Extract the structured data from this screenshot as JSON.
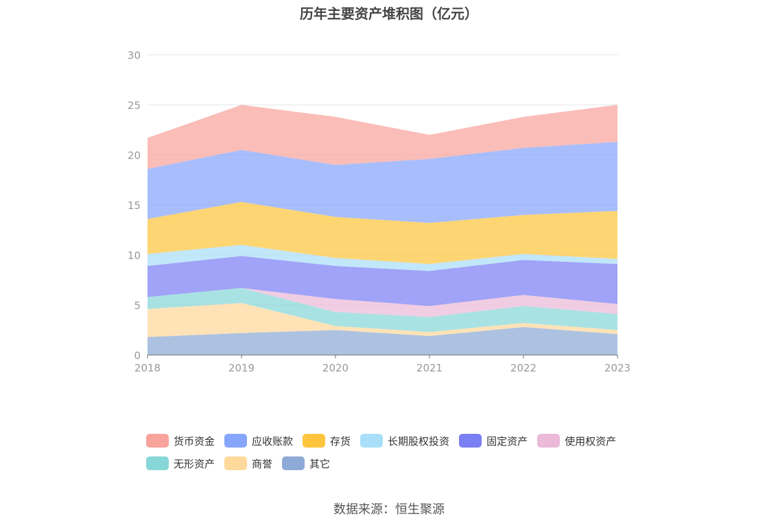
{
  "chart_data": {
    "type": "area",
    "stacked": true,
    "title": "历年主要资产堆积图（亿元）",
    "x": [
      "2018",
      "2019",
      "2020",
      "2021",
      "2022",
      "2023"
    ],
    "ylim": [
      0,
      30
    ],
    "yticks": [
      "0",
      "5",
      "10",
      "15",
      "20",
      "25",
      "30"
    ],
    "grid": true,
    "legend_position": "bottom",
    "series": [
      {
        "name": "其它",
        "color": "#8eaad6",
        "values": [
          1.8,
          2.2,
          2.5,
          1.9,
          2.8,
          2.1
        ]
      },
      {
        "name": "商誉",
        "color": "#ffd89b",
        "values": [
          2.8,
          3.0,
          0.4,
          0.4,
          0.4,
          0.4
        ]
      },
      {
        "name": "无形资产",
        "color": "#88d7d8",
        "values": [
          1.2,
          1.5,
          1.4,
          1.5,
          1.7,
          1.6
        ]
      },
      {
        "name": "使用权资产",
        "color": "#ebbad8",
        "values": [
          0.0,
          0.0,
          1.3,
          1.1,
          1.1,
          1.0
        ]
      },
      {
        "name": "固定资产",
        "color": "#7b7ff4",
        "values": [
          3.1,
          3.2,
          3.3,
          3.5,
          3.5,
          4.0
        ]
      },
      {
        "name": "长期股权投资",
        "color": "#a9def8",
        "values": [
          1.2,
          1.1,
          0.8,
          0.7,
          0.6,
          0.5
        ]
      },
      {
        "name": "存货",
        "color": "#fdc53d",
        "values": [
          3.5,
          4.3,
          4.1,
          4.1,
          3.9,
          4.8
        ]
      },
      {
        "name": "应收账款",
        "color": "#87a5fb",
        "values": [
          5.0,
          5.2,
          5.2,
          6.4,
          6.7,
          6.9
        ]
      },
      {
        "name": "货币资金",
        "color": "#f8a39c",
        "values": [
          3.1,
          4.5,
          4.8,
          2.4,
          3.1,
          3.7
        ]
      }
    ],
    "legend_order": [
      "货币资金",
      "应收账款",
      "存货",
      "长期股权投资",
      "固定资产",
      "使用权资产",
      "无形资产",
      "商誉",
      "其它"
    ]
  },
  "footer": {
    "source": "数据来源：恒生聚源"
  }
}
